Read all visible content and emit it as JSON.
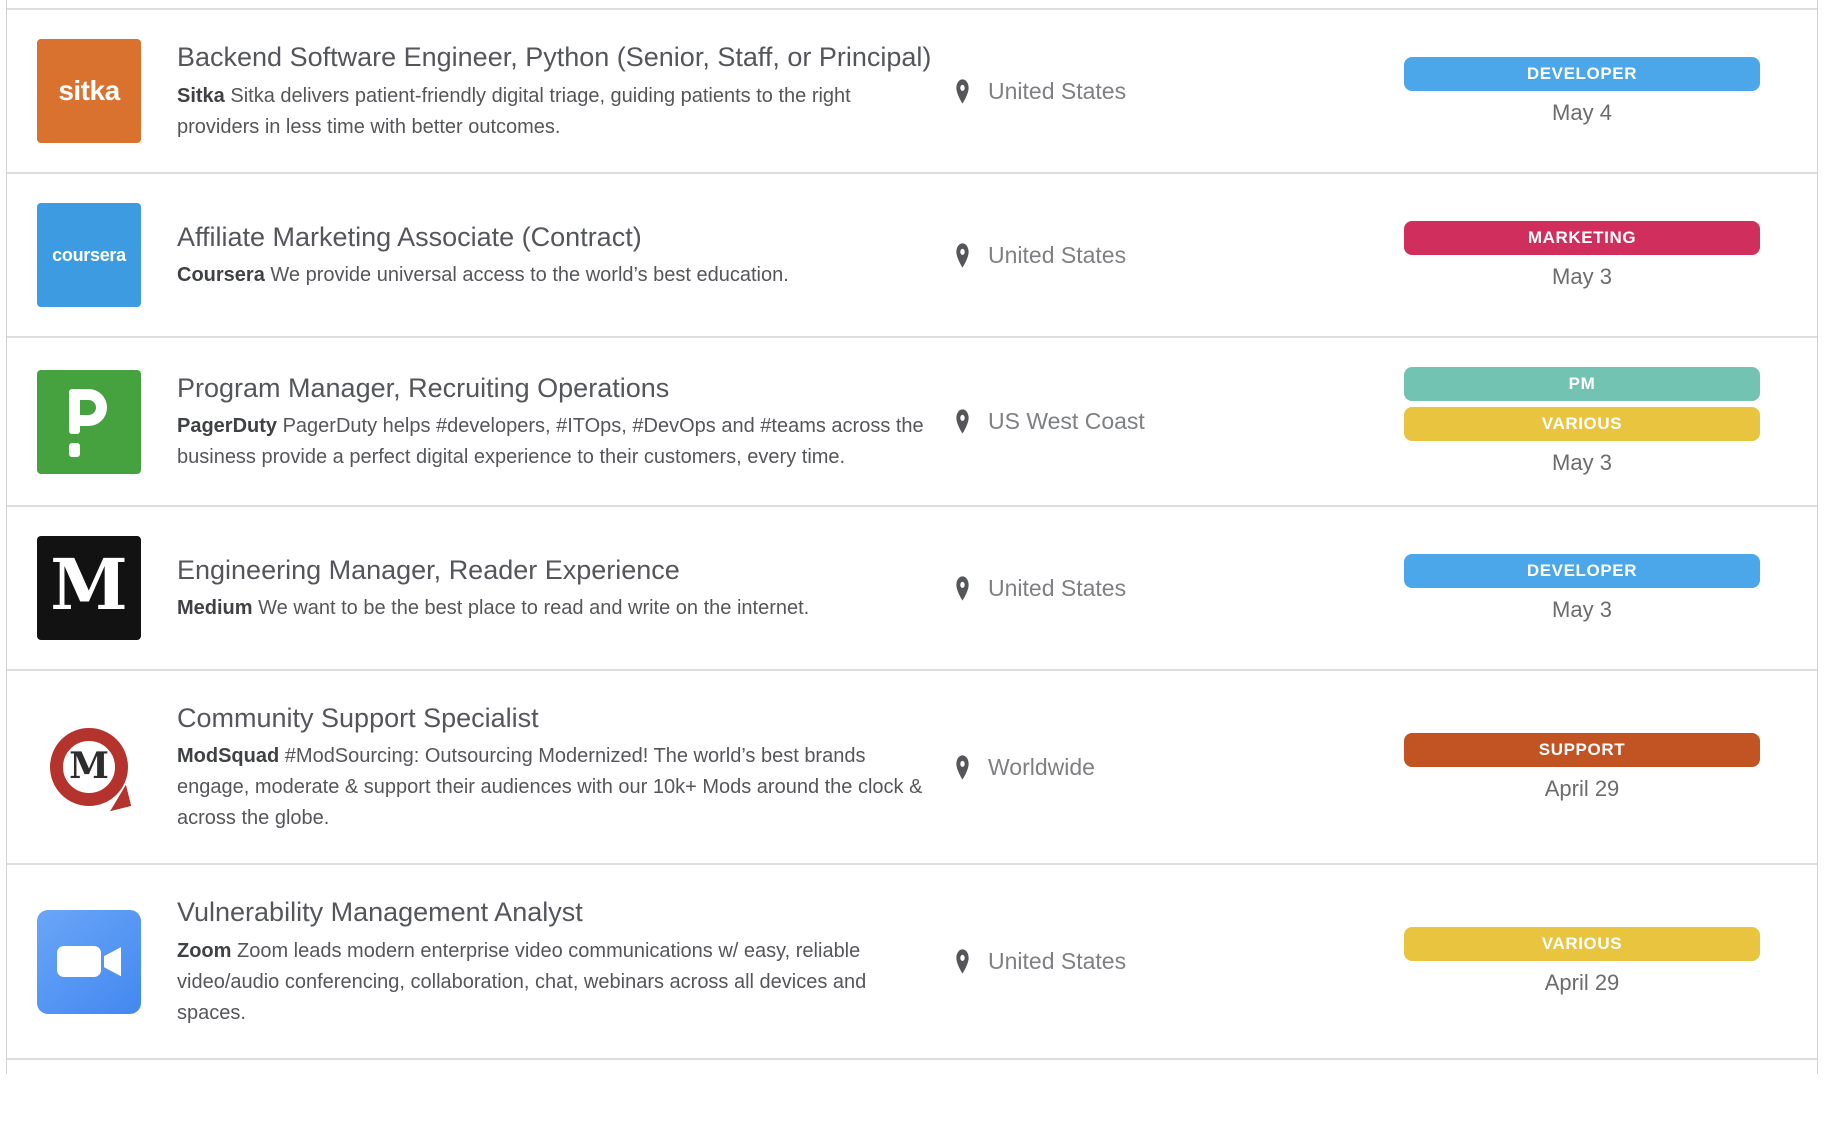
{
  "jobs": [
    {
      "company": "Sitka",
      "logo": {
        "type": "sitka",
        "bg": "#d9712f",
        "label": "sitka"
      },
      "title": "Backend Software Engineer, Python (Senior, Staff, or Principal)",
      "description": "Sitka delivers patient-friendly digital triage, guiding patients to the right providers in less time with better outcomes.",
      "location": "United States",
      "badges": [
        {
          "label": "DEVELOPER",
          "color": "#4ba7ea"
        }
      ],
      "date": "May 4"
    },
    {
      "company": "Coursera",
      "logo": {
        "type": "coursera",
        "bg": "#3d9be1",
        "label": "coursera"
      },
      "title": "Affiliate Marketing Associate (Contract)",
      "description": "We provide universal access to the world’s best education.",
      "location": "United States",
      "badges": [
        {
          "label": "MARKETING",
          "color": "#d02f5e"
        }
      ],
      "date": "May 3"
    },
    {
      "company": "PagerDuty",
      "logo": {
        "type": "pagerduty",
        "bg": "#46a23f",
        "label": "P"
      },
      "title": "Program Manager, Recruiting Operations",
      "description": "PagerDuty helps #developers, #ITOps, #DevOps and #teams across the business provide a perfect digital experience to their customers, every time.",
      "location": "US West Coast",
      "badges": [
        {
          "label": "PM",
          "color": "#73c3b3"
        },
        {
          "label": "VARIOUS",
          "color": "#e9c53f"
        }
      ],
      "date": "May 3"
    },
    {
      "company": "Medium",
      "logo": {
        "type": "medium",
        "bg": "#121212",
        "label": "M"
      },
      "title": "Engineering Manager, Reader Experience",
      "description": "We want to be the best place to read and write on the internet.",
      "location": "United States",
      "badges": [
        {
          "label": "DEVELOPER",
          "color": "#4ba7ea"
        }
      ],
      "date": "May 3"
    },
    {
      "company": "ModSquad",
      "logo": {
        "type": "modsquad",
        "bg": "#ffffff",
        "ring": "#b4332d",
        "label": "M"
      },
      "title": "Community Support Specialist",
      "description": "#ModSourcing: Outsourcing Modernized! The world’s best brands engage, moderate & support their audiences with our 10k+ Mods around the clock & across the globe.",
      "location": "Worldwide",
      "badges": [
        {
          "label": "SUPPORT",
          "color": "#c25322"
        }
      ],
      "date": "April 29"
    },
    {
      "company": "Zoom",
      "logo": {
        "type": "zoom",
        "bg": "#4388f0",
        "bg2": "#6aa6f8",
        "label": "camera"
      },
      "title": "Vulnerability Management Analyst",
      "description": "Zoom leads modern enterprise video communications w/ easy, reliable video/audio conferencing, collaboration, chat, webinars across all devices and spaces.",
      "location": "United States",
      "badges": [
        {
          "label": "VARIOUS",
          "color": "#e9c53f"
        }
      ],
      "date": "April 29"
    }
  ]
}
